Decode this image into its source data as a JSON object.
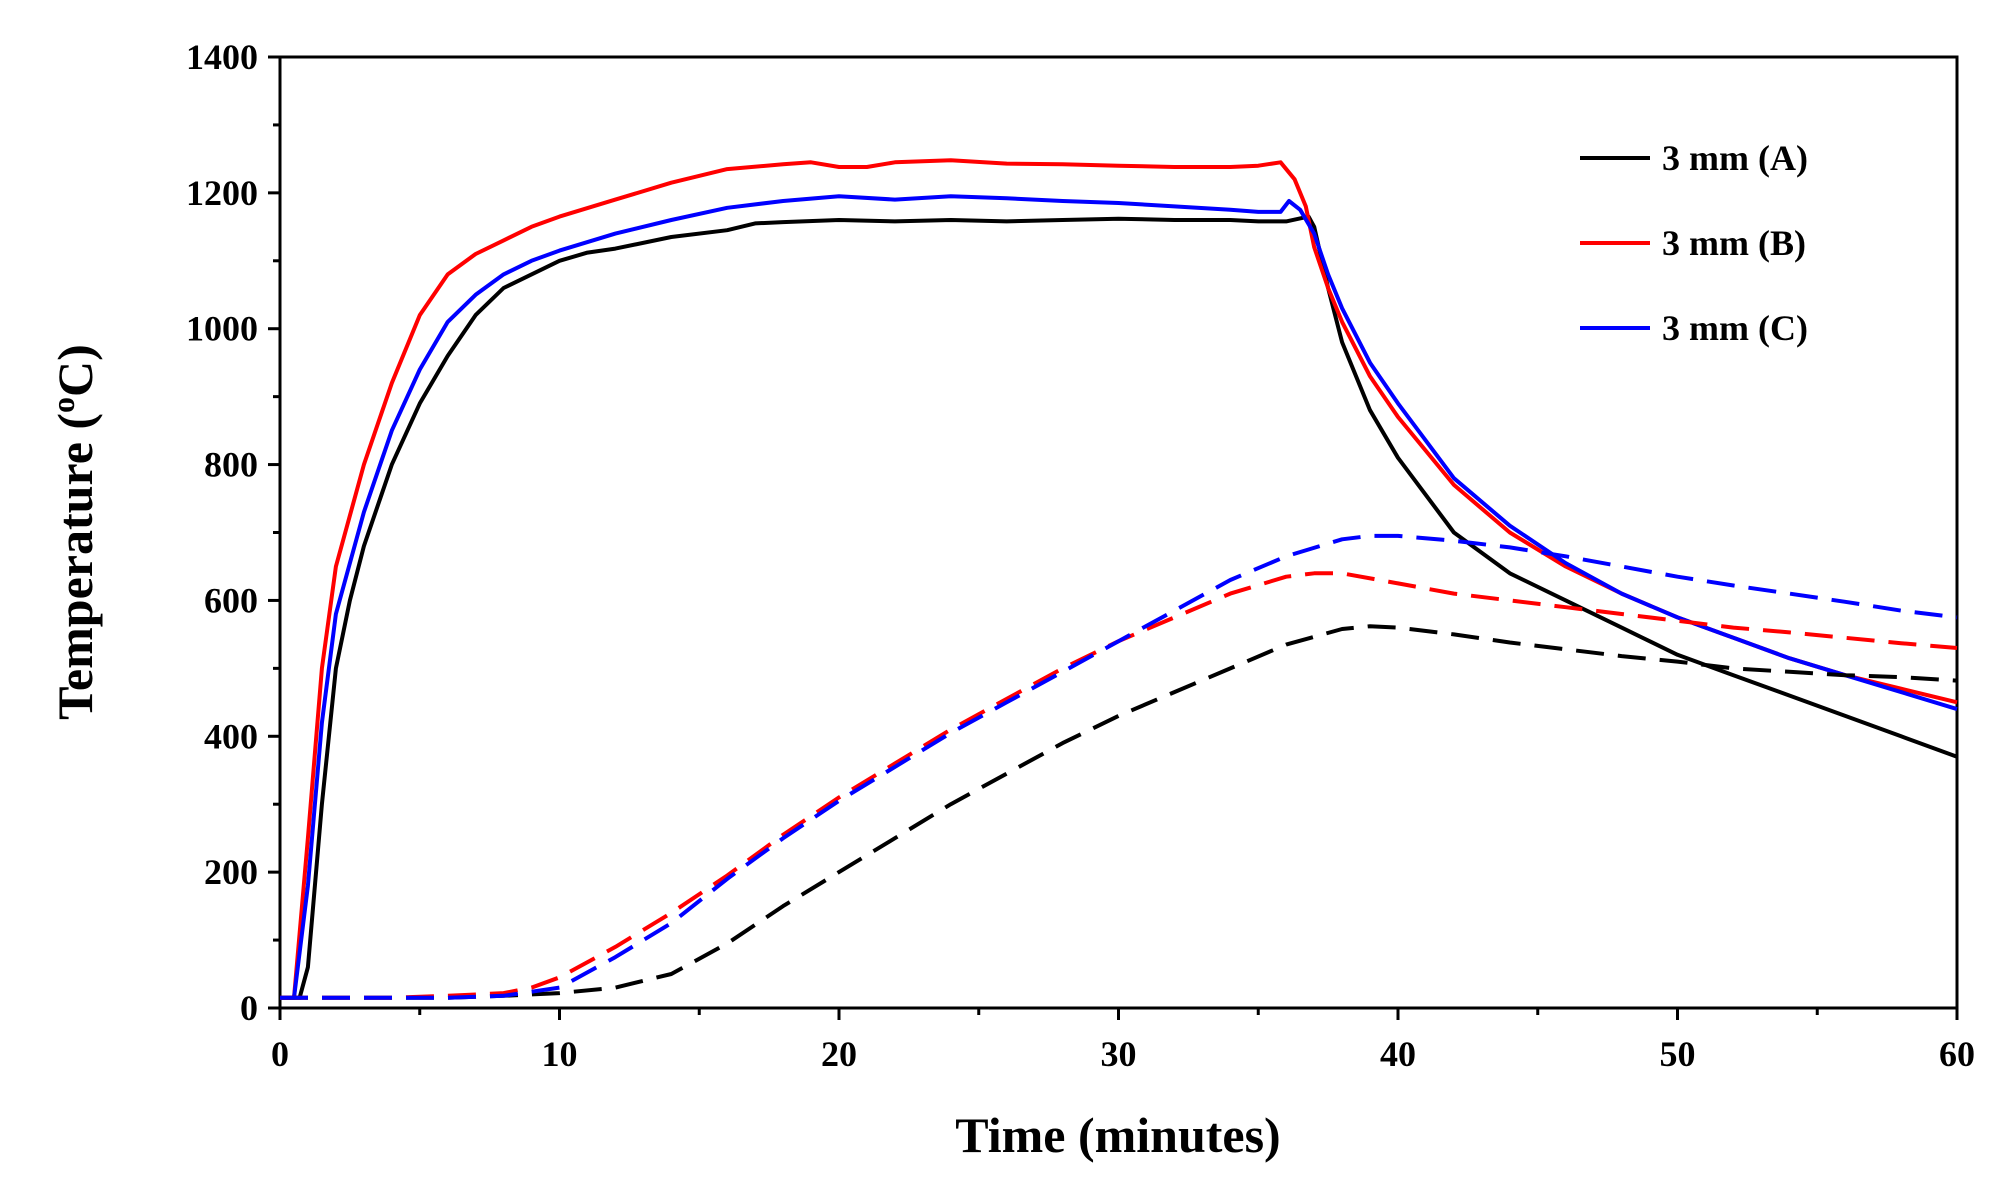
{
  "chart_data": {
    "type": "line",
    "title": "",
    "xlabel": "Time (minutes)",
    "ylabel": "Temperature (°C)",
    "ylabel_parts": {
      "prefix": "Temperature (",
      "degree": "o",
      "suffix": "C)"
    },
    "xlim": [
      0,
      60
    ],
    "ylim": [
      0,
      1400
    ],
    "xticks": [
      0,
      10,
      20,
      30,
      40,
      50,
      60
    ],
    "yticks": [
      0,
      200,
      400,
      600,
      800,
      1000,
      1200,
      1400
    ],
    "xtick_labels": [
      "0",
      "10",
      "20",
      "30",
      "40",
      "50",
      "60"
    ],
    "ytick_labels": [
      "0",
      "200",
      "400",
      "600",
      "800",
      "1000",
      "1200",
      "1400"
    ],
    "grid": false,
    "legend_position": "top-right",
    "legend": [
      {
        "label": "3 mm (A)",
        "color": "#000000"
      },
      {
        "label": "3 mm (B)",
        "color": "#ff0000"
      },
      {
        "label": "3 mm (C)",
        "color": "#0000ff"
      }
    ],
    "series": [
      {
        "name": "3 mm (A)",
        "color": "#000000",
        "style": "solid",
        "x": [
          0,
          0.7,
          1,
          1.5,
          2,
          2.5,
          3,
          4,
          5,
          6,
          7,
          8,
          10,
          11,
          12,
          14,
          16,
          17,
          18,
          20,
          22,
          24,
          26,
          28,
          30,
          32,
          34,
          35,
          36,
          36.8,
          37,
          37.5,
          38,
          39,
          40,
          42,
          44,
          46,
          48,
          50,
          52,
          54,
          56,
          58,
          60
        ],
        "y": [
          15,
          15,
          60,
          300,
          500,
          600,
          680,
          800,
          890,
          960,
          1020,
          1060,
          1100,
          1112,
          1118,
          1135,
          1145,
          1155,
          1157,
          1160,
          1158,
          1160,
          1158,
          1160,
          1162,
          1160,
          1160,
          1158,
          1158,
          1165,
          1150,
          1060,
          980,
          880,
          810,
          700,
          640,
          600,
          560,
          520,
          490,
          460,
          430,
          400,
          370
        ]
      },
      {
        "name": "3 mm (B)",
        "color": "#ff0000",
        "style": "solid",
        "x": [
          0,
          0.5,
          1,
          1.5,
          2,
          3,
          4,
          5,
          6,
          7,
          8,
          9,
          10,
          12,
          14,
          16,
          18,
          19,
          20,
          21,
          22,
          24,
          26,
          28,
          30,
          32,
          34,
          35,
          35.8,
          36.3,
          36.7,
          37,
          37.5,
          38,
          39,
          40,
          42,
          44,
          46,
          48,
          50,
          52,
          54,
          56,
          58,
          60
        ],
        "y": [
          15,
          15,
          250,
          500,
          650,
          800,
          920,
          1020,
          1080,
          1110,
          1130,
          1150,
          1165,
          1190,
          1215,
          1235,
          1242,
          1245,
          1238,
          1238,
          1245,
          1248,
          1243,
          1242,
          1240,
          1238,
          1238,
          1240,
          1245,
          1220,
          1180,
          1120,
          1060,
          1010,
          930,
          870,
          770,
          700,
          650,
          610,
          575,
          545,
          515,
          490,
          470,
          450
        ]
      },
      {
        "name": "3 mm (C)",
        "color": "#0000ff",
        "style": "solid",
        "x": [
          0,
          0.5,
          1,
          1.5,
          2,
          3,
          4,
          5,
          6,
          7,
          8,
          9,
          10,
          12,
          14,
          16,
          18,
          20,
          22,
          24,
          26,
          28,
          30,
          32,
          34,
          35,
          35.8,
          36.1,
          36.5,
          37,
          37.5,
          38,
          39,
          40,
          42,
          44,
          46,
          48,
          50,
          52,
          54,
          56,
          58,
          60
        ],
        "y": [
          15,
          15,
          180,
          420,
          580,
          730,
          850,
          940,
          1010,
          1050,
          1080,
          1100,
          1115,
          1140,
          1160,
          1178,
          1188,
          1195,
          1190,
          1195,
          1192,
          1188,
          1185,
          1180,
          1175,
          1172,
          1172,
          1188,
          1175,
          1140,
          1080,
          1030,
          950,
          890,
          780,
          710,
          655,
          610,
          575,
          545,
          515,
          490,
          465,
          440
        ]
      },
      {
        "name": "3 mm (A) dashed",
        "color": "#000000",
        "style": "dashed",
        "x": [
          0,
          2,
          4,
          6,
          8,
          10,
          12,
          14,
          16,
          18,
          20,
          22,
          24,
          26,
          28,
          30,
          32,
          34,
          36,
          38,
          39,
          40,
          42,
          44,
          46,
          48,
          50,
          52,
          54,
          56,
          58,
          60
        ],
        "y": [
          15,
          15,
          15,
          15,
          18,
          22,
          30,
          50,
          95,
          150,
          200,
          250,
          300,
          345,
          390,
          430,
          465,
          500,
          535,
          558,
          562,
          560,
          550,
          538,
          528,
          518,
          510,
          500,
          495,
          490,
          487,
          482
        ]
      },
      {
        "name": "3 mm (B) dashed",
        "color": "#ff0000",
        "style": "dashed",
        "x": [
          0,
          2,
          4,
          6,
          8,
          9,
          10,
          12,
          14,
          16,
          18,
          20,
          22,
          24,
          26,
          28,
          30,
          32,
          34,
          36,
          37,
          38,
          40,
          42,
          44,
          46,
          48,
          50,
          52,
          54,
          56,
          58,
          60
        ],
        "y": [
          15,
          15,
          15,
          18,
          22,
          30,
          45,
          90,
          140,
          195,
          255,
          310,
          360,
          410,
          455,
          500,
          540,
          575,
          610,
          635,
          640,
          640,
          625,
          610,
          600,
          590,
          580,
          570,
          560,
          553,
          545,
          537,
          530
        ]
      },
      {
        "name": "3 mm (C) dashed",
        "color": "#0000ff",
        "style": "dashed",
        "x": [
          0,
          2,
          4,
          6,
          8,
          10,
          12,
          14,
          16,
          18,
          20,
          22,
          24,
          26,
          28,
          30,
          32,
          34,
          36,
          38,
          39,
          40,
          42,
          44,
          46,
          48,
          50,
          52,
          54,
          56,
          58,
          60
        ],
        "y": [
          15,
          15,
          15,
          15,
          18,
          30,
          75,
          125,
          190,
          250,
          305,
          355,
          405,
          450,
          495,
          540,
          585,
          630,
          665,
          690,
          695,
          695,
          688,
          678,
          665,
          650,
          635,
          622,
          610,
          598,
          585,
          575
        ]
      }
    ]
  }
}
